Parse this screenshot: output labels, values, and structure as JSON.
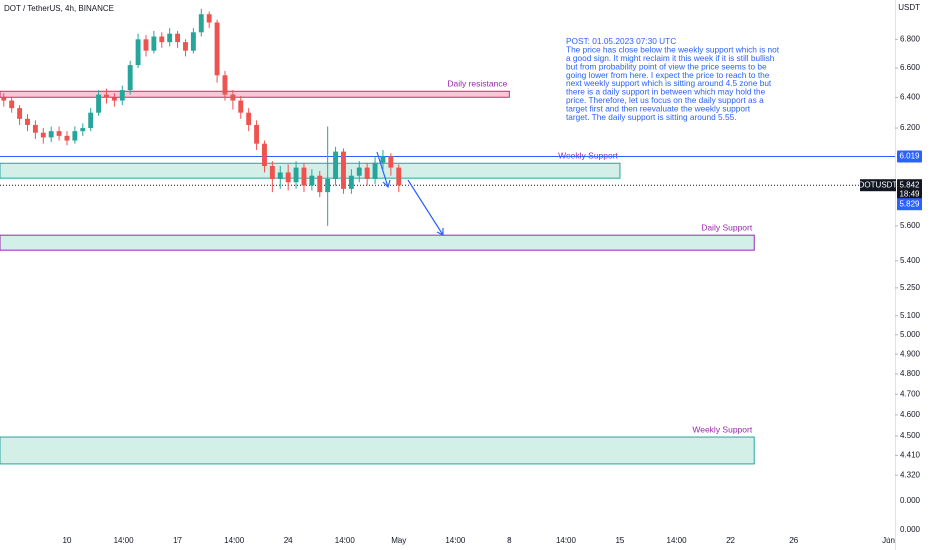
{
  "chart_data": {
    "type": "candlestick",
    "title": "DOT / TetherUS, 4h, BINANCE",
    "currency": "USDT",
    "log_scale": true,
    "grid": false,
    "up_color": "#26a69a",
    "down_color": "#ef5350",
    "x": [
      -4,
      -3.5,
      -3,
      -2.5,
      -2,
      -1.5,
      -1,
      -0.5,
      0,
      0.5,
      1,
      1.5,
      2,
      2.5,
      3,
      3.5,
      4,
      4.5,
      5,
      5.5,
      6,
      6.5,
      7,
      7.5,
      8,
      8.5,
      9,
      9.5,
      10,
      10.5,
      11,
      11.5,
      12,
      12.5,
      13,
      13.5,
      14,
      14.5,
      15,
      15.5,
      16,
      16.5,
      17,
      17.5,
      18,
      18.5,
      19,
      19.5,
      20,
      20.5,
      21
    ],
    "open": [
      6.4,
      6.38,
      6.33,
      6.26,
      6.22,
      6.17,
      6.14,
      6.18,
      6.15,
      6.12,
      6.18,
      6.2,
      6.3,
      6.42,
      6.4,
      6.38,
      6.45,
      6.62,
      6.8,
      6.72,
      6.82,
      6.78,
      6.84,
      6.78,
      6.72,
      6.85,
      6.98,
      6.92,
      6.55,
      6.42,
      6.38,
      6.3,
      6.22,
      6.1,
      5.96,
      5.88,
      5.92,
      5.86,
      5.95,
      5.84,
      5.9,
      5.8,
      5.88,
      6.05,
      5.82,
      5.9,
      5.95,
      5.88,
      5.98,
      6.02,
      5.95
    ],
    "high": [
      6.43,
      6.4,
      6.35,
      6.29,
      6.25,
      6.2,
      6.21,
      6.21,
      6.18,
      6.21,
      6.23,
      6.33,
      6.45,
      6.46,
      6.43,
      6.48,
      6.65,
      6.84,
      6.83,
      6.86,
      6.85,
      6.88,
      6.86,
      6.8,
      6.88,
      7.02,
      7.0,
      6.94,
      6.58,
      6.45,
      6.41,
      6.33,
      6.25,
      6.12,
      5.99,
      5.96,
      5.97,
      5.99,
      5.98,
      5.94,
      5.93,
      6.21,
      6.08,
      6.07,
      5.94,
      5.99,
      5.98,
      6.02,
      6.06,
      6.04,
      5.97
    ],
    "low": [
      6.34,
      6.3,
      6.22,
      6.18,
      6.13,
      6.1,
      6.11,
      6.12,
      6.09,
      6.1,
      6.15,
      6.18,
      6.28,
      6.36,
      6.34,
      6.35,
      6.42,
      6.6,
      6.68,
      6.7,
      6.74,
      6.75,
      6.74,
      6.68,
      6.7,
      6.82,
      6.88,
      6.5,
      6.38,
      6.32,
      6.26,
      6.18,
      6.06,
      5.92,
      5.8,
      5.82,
      5.81,
      5.82,
      5.8,
      5.81,
      5.77,
      5.6,
      5.84,
      5.79,
      5.79,
      5.86,
      5.84,
      5.85,
      5.94,
      5.9,
      5.8
    ],
    "close": [
      6.38,
      6.33,
      6.26,
      6.22,
      6.17,
      6.14,
      6.18,
      6.15,
      6.12,
      6.18,
      6.2,
      6.3,
      6.42,
      6.4,
      6.38,
      6.45,
      6.62,
      6.8,
      6.72,
      6.82,
      6.78,
      6.84,
      6.78,
      6.72,
      6.85,
      6.98,
      6.92,
      6.55,
      6.42,
      6.38,
      6.3,
      6.22,
      6.1,
      5.96,
      5.88,
      5.92,
      5.86,
      5.95,
      5.84,
      5.9,
      5.8,
      5.88,
      6.05,
      5.82,
      5.9,
      5.95,
      5.88,
      5.98,
      6.02,
      5.95,
      5.842
    ],
    "xlim": [
      -4.24,
      52.41
    ],
    "xticks": [
      {
        "value": 0,
        "label": "10"
      },
      {
        "value": 3.583,
        "label": "14:00"
      },
      {
        "value": 7,
        "label": "17"
      },
      {
        "value": 10.583,
        "label": "14:00"
      },
      {
        "value": 14,
        "label": "24"
      },
      {
        "value": 17.583,
        "label": "14:00"
      },
      {
        "value": 21,
        "label": "May"
      },
      {
        "value": 24.583,
        "label": "14:00"
      },
      {
        "value": 28,
        "label": "8"
      },
      {
        "value": 31.583,
        "label": "14:00"
      },
      {
        "value": 35,
        "label": "15"
      },
      {
        "value": 38.583,
        "label": "14:00"
      },
      {
        "value": 42,
        "label": "22"
      },
      {
        "value": 46,
        "label": "26"
      },
      {
        "value": 52,
        "label": "Jun"
      }
    ],
    "ylim": [
      4.034,
      7.084
    ],
    "yticks": [
      {
        "value": 6.8,
        "label": "6.800"
      },
      {
        "value": 6.6,
        "label": "6.600"
      },
      {
        "value": 6.4,
        "label": "6.400"
      },
      {
        "value": 6.2,
        "label": "6.200"
      },
      {
        "value": 5.6,
        "label": "5.600"
      },
      {
        "value": 5.4,
        "label": "5.400"
      },
      {
        "value": 5.25,
        "label": "5.250"
      },
      {
        "value": 5.1,
        "label": "5.100"
      },
      {
        "value": 5.0,
        "label": "5.000"
      },
      {
        "value": 4.9,
        "label": "4.900"
      },
      {
        "value": 4.8,
        "label": "4.800"
      },
      {
        "value": 4.7,
        "label": "4.700"
      },
      {
        "value": 4.6,
        "label": "4.600"
      },
      {
        "value": 4.5,
        "label": "4.500"
      },
      {
        "value": 4.41,
        "label": "4.410"
      },
      {
        "value": 4.32,
        "label": "4.320"
      }
    ],
    "extra_axis_labels": [
      "0.000",
      "0.000"
    ],
    "zones": [
      {
        "label": "Daily resistance",
        "top": 6.442,
        "bottom": 6.402,
        "x_end": 28,
        "fill": "#f8c8d8",
        "stroke": "#e91e63"
      },
      {
        "label": "Weekly Support",
        "top": 5.977,
        "bottom": 5.885,
        "x_end": 35,
        "fill": "#d2efe8",
        "stroke": "#26a69a"
      },
      {
        "label": "Daily Support",
        "top": 5.546,
        "bottom": 5.46,
        "x_end": 43.5,
        "fill": "#d2efe8",
        "stroke": "#9c27b0"
      },
      {
        "label": "Weekly Support",
        "top": 4.495,
        "bottom": 4.371,
        "x_end": 43.5,
        "fill": "#d2efe8",
        "stroke": "#26a69a"
      }
    ],
    "weekly_line": {
      "value": 6.019,
      "color": "#2962ff"
    },
    "symbol": "DOTUSDT",
    "last_price": 5.842,
    "countdown": "18:49",
    "bid_price": 5.829,
    "post": [
      "POST: 01.05.2023 07:30 UTC",
      "The price has close below the weekly support which is not",
      "a good sign. It might reclaim it this week if it is still bullish",
      "but from probability point of view the price seems to be",
      "going lower from here. I expect the price to reach to the",
      "next weekly support which is sitting around 4.5 zone but",
      "there is a daily support in between which may hold the",
      "price. Therefore, let us focus on the daily support as a",
      "target first and then reevaluate the weekly support",
      "target. The daily support is sitting around 5.55."
    ]
  }
}
